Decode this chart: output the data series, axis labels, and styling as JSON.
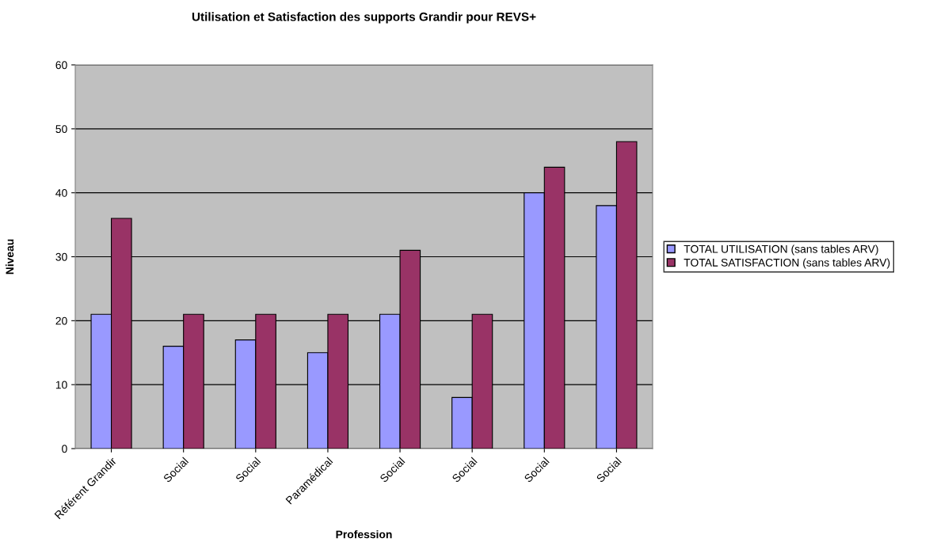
{
  "chart_data": {
    "type": "bar",
    "title": "Utilisation et Satisfaction des supports Grandir pour REVS+",
    "xlabel": "Profession",
    "ylabel": "Niveau",
    "categories": [
      "Référent Grandir",
      "Social",
      "Social",
      "Paramédical",
      "Social",
      "Social",
      "Social",
      "Social"
    ],
    "series": [
      {
        "name": "TOTAL UTILISATION (sans tables ARV)",
        "color": "#9999ff",
        "values": [
          21,
          16,
          17,
          15,
          21,
          8,
          40,
          38
        ]
      },
      {
        "name": "TOTAL SATISFACTION (sans tables ARV)",
        "color": "#993366",
        "values": [
          36,
          21,
          21,
          21,
          31,
          21,
          44,
          48
        ]
      }
    ],
    "ylim": [
      0,
      60
    ],
    "yticks": [
      0,
      10,
      20,
      30,
      40,
      50,
      60
    ],
    "grid": "y",
    "legend": "right"
  }
}
